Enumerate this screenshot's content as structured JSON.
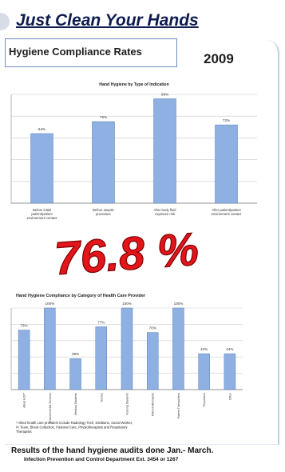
{
  "banner": {
    "title": "Just Clean Your Hands"
  },
  "header": {
    "title": "Hygiene Compliance Rates",
    "year": "2009"
  },
  "overlay": {
    "big_rate": "76.8 %"
  },
  "chart_data": [
    {
      "type": "bar",
      "title": "Hand Hygiene by Type of Indication",
      "categories": [
        "Before initial patient/patient environment contact",
        "Before aseptic procedure",
        "After body fluid exposure risk",
        "After patient/patient environment contact"
      ],
      "category_labels_visible": [
        "Before initial patient/patient environment contact",
        "Before aseptic procedure",
        "After body fluid exposure risk",
        "After patient/patient environment contact"
      ],
      "values": [
        64,
        75,
        96,
        72
      ],
      "data_labels": [
        "64%",
        "75%",
        "96%",
        "72%"
      ],
      "ylim": [
        0,
        100
      ],
      "grid": true,
      "bar_color": "#8eb0e2"
    },
    {
      "type": "bar",
      "title": "Hand Hygiene Compliance by Category of Health Care Provider",
      "categories": [
        "Allied HCP*",
        "Environmental Services",
        "Medical Students",
        "Nurses",
        "Nursing Students",
        "Patient Attendants",
        "Patient Transporters",
        "Physicians",
        "Other"
      ],
      "values": [
        73,
        100,
        38,
        77,
        100,
        70,
        100,
        44,
        44
      ],
      "data_labels": [
        "73%",
        "100%",
        "38%",
        "77%",
        "100%",
        "70%",
        "100%",
        "44%",
        "44%"
      ],
      "ylim": [
        0,
        100
      ],
      "grid": true,
      "bar_color": "#8eb0e2",
      "footnote": "* Allied health care providers include Radiology Tech, Dietitians, Social Worker, IV Team, Blood Collection, Pastoral Care, Physiotherapists and Respiratory Therapists"
    }
  ],
  "footer": {
    "main": "Results of the hand hygiene audits done Jan.- March.",
    "sub": "Infection Prevention and Control Department Ext. 3454 or 1267"
  },
  "colors": {
    "banner_text": "#0d1b4f",
    "big_rate": "#e4141b",
    "bars": "#8eb0e2",
    "frame": "#bfd0e6"
  }
}
